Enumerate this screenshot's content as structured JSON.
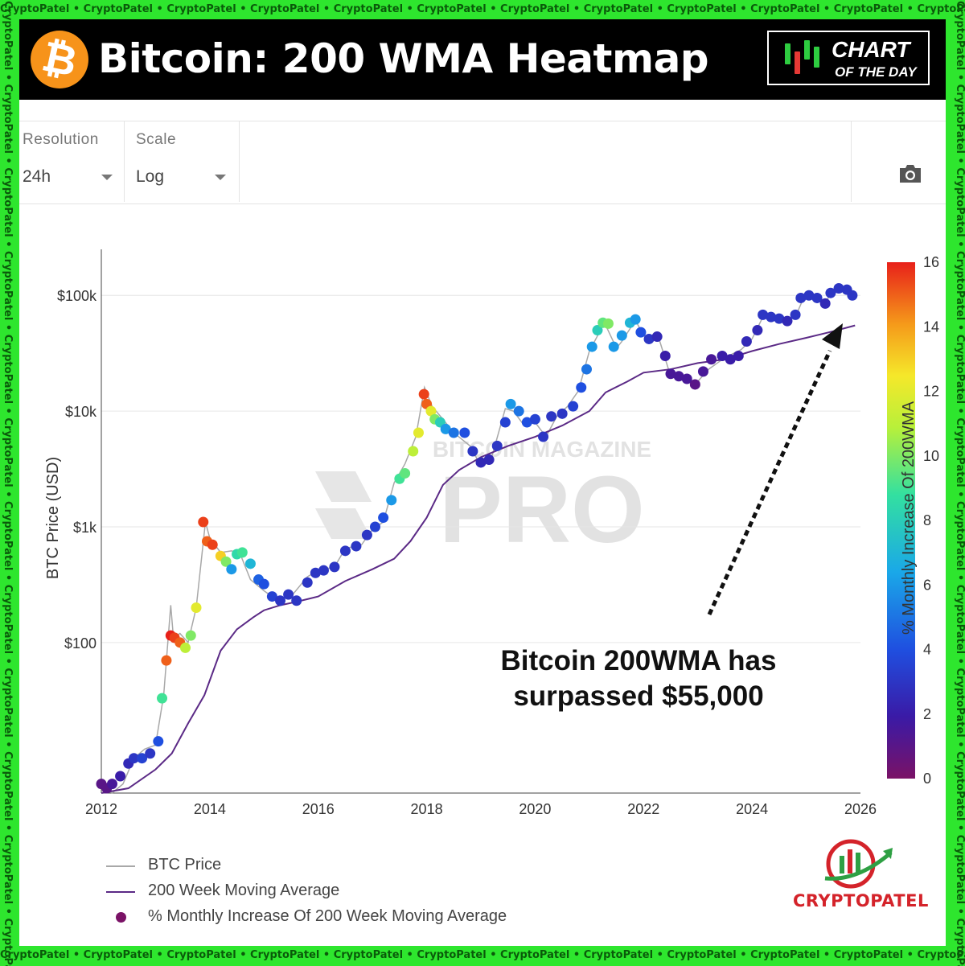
{
  "watermark": "CryptoPatel • CryptoPatel • CryptoPatel • CryptoPatel • CryptoPatel • CryptoPatel • CryptoPatel • CryptoPatel • CryptoPatel • CryptoPatel • CryptoPatel • CryptoPatel • CryptoPatel",
  "banner": {
    "title": "Bitcoin: 200 WMA Heatmap",
    "logo_icon": "bitcoin-icon",
    "logo_glyph": "₿",
    "badge_line1": "CHART",
    "badge_line2": "OF THE DAY"
  },
  "toolbar": {
    "resolution_label": "Resolution",
    "resolution_value": "24h",
    "scale_label": "Scale",
    "scale_value": "Log",
    "camera_icon": "camera-icon"
  },
  "annotation": {
    "line1": "Bitcoin 200WMA has",
    "line2": "surpassed $55,000"
  },
  "watermark_chart": {
    "line1": "BITCOIN MAGAZINE",
    "line2": "PRO"
  },
  "legend": {
    "btc_price": "BTC Price",
    "wma": "200 Week Moving Average",
    "pct": "% Monthly Increase Of 200 Week Moving Average"
  },
  "brand": {
    "name": "CRYPTOPATEL"
  },
  "colors": {
    "wma": "#5b2a86",
    "price_line": "#a8a8a8",
    "camera": "#555555"
  },
  "chart_data": {
    "type": "scatter",
    "y_scale": "log",
    "ylabel": "BTC Price (USD)",
    "x_ticks": [
      "2012",
      "2014",
      "2016",
      "2018",
      "2020",
      "2022",
      "2024",
      "2026"
    ],
    "y_ticks": [
      {
        "value": 100,
        "label": "$100"
      },
      {
        "value": 1000,
        "label": "$1k"
      },
      {
        "value": 10000,
        "label": "$10k"
      },
      {
        "value": 100000,
        "label": "$100k"
      }
    ],
    "xlim": [
      2012,
      2026
    ],
    "ylim": [
      5,
      250000
    ],
    "colorbar": {
      "label": "% Monthly Increase Of 200WMA",
      "range": [
        0,
        16
      ],
      "ticks": [
        0,
        2,
        4,
        6,
        8,
        10,
        12,
        14,
        16
      ]
    },
    "series": [
      {
        "name": "BTC Price",
        "x": [
          2012.0,
          2012.2,
          2012.4,
          2012.6,
          2012.8,
          2013.0,
          2013.15,
          2013.28,
          2013.33,
          2013.45,
          2013.6,
          2013.75,
          2013.92,
          2014.0,
          2014.2,
          2014.4,
          2014.55,
          2014.75,
          2015.0,
          2015.2,
          2015.5,
          2015.8,
          2016.0,
          2016.3,
          2016.5,
          2016.8,
          2017.0,
          2017.2,
          2017.4,
          2017.6,
          2017.8,
          2017.96,
          2018.1,
          2018.3,
          2018.5,
          2018.8,
          2018.95,
          2019.2,
          2019.45,
          2019.6,
          2019.8,
          2020.0,
          2020.2,
          2020.4,
          2020.6,
          2020.8,
          2021.0,
          2021.28,
          2021.5,
          2021.6,
          2021.85,
          2022.0,
          2022.3,
          2022.5,
          2022.8,
          2022.95,
          2023.2,
          2023.5,
          2023.8,
          2024.0,
          2024.2,
          2024.5,
          2024.8,
          2024.95,
          2025.1,
          2025.3,
          2025.5,
          2025.7,
          2025.85
        ],
        "y": [
          6,
          5,
          6,
          10,
          12,
          13,
          35,
          210,
          110,
          120,
          100,
          200,
          1100,
          800,
          600,
          620,
          600,
          350,
          280,
          240,
          250,
          370,
          420,
          450,
          650,
          700,
          950,
          1100,
          2400,
          3500,
          6000,
          16000,
          11000,
          8500,
          6500,
          5000,
          3700,
          4000,
          10500,
          10000,
          7500,
          8000,
          6000,
          9000,
          11000,
          15000,
          33000,
          58000,
          35000,
          40000,
          61000,
          45000,
          40000,
          20000,
          19000,
          17000,
          23000,
          29000,
          34000,
          42000,
          65000,
          60000,
          65000,
          95000,
          100000,
          85000,
          105000,
          115000,
          108000
        ]
      },
      {
        "name": "200 Week Moving Average",
        "x": [
          2012.0,
          2012.5,
          2013.0,
          2013.3,
          2013.6,
          2013.9,
          2014.2,
          2014.5,
          2014.8,
          2015.0,
          2015.3,
          2015.6,
          2016.0,
          2016.5,
          2017.0,
          2017.4,
          2017.7,
          2018.0,
          2018.3,
          2018.6,
          2019.0,
          2019.5,
          2020.0,
          2020.5,
          2021.0,
          2021.3,
          2021.7,
          2022.0,
          2022.5,
          2023.0,
          2023.5,
          2024.0,
          2024.5,
          2025.0,
          2025.5,
          2025.9
        ],
        "y": [
          5,
          5.5,
          8,
          11,
          20,
          35,
          85,
          130,
          165,
          190,
          210,
          225,
          250,
          340,
          430,
          530,
          750,
          1200,
          2300,
          3100,
          4000,
          5000,
          6000,
          7500,
          10000,
          14500,
          18000,
          21500,
          23000,
          26000,
          28000,
          33000,
          38000,
          43000,
          49000,
          55000
        ]
      },
      {
        "name": "% Monthly Increase Of 200 Week Moving Average",
        "points": [
          [
            2012.0,
            6,
            1
          ],
          [
            2012.1,
            5.5,
            1
          ],
          [
            2012.2,
            6,
            1.5
          ],
          [
            2012.35,
            7,
            2
          ],
          [
            2012.5,
            9,
            2.5
          ],
          [
            2012.6,
            10,
            3
          ],
          [
            2012.75,
            10,
            3.5
          ],
          [
            2012.9,
            11,
            3
          ],
          [
            2013.05,
            14,
            4
          ],
          [
            2013.12,
            33,
            9
          ],
          [
            2013.2,
            70,
            15
          ],
          [
            2013.28,
            115,
            16
          ],
          [
            2013.35,
            110,
            15.5
          ],
          [
            2013.45,
            100,
            15
          ],
          [
            2013.55,
            90,
            11
          ],
          [
            2013.65,
            115,
            10
          ],
          [
            2013.75,
            200,
            12
          ],
          [
            2013.88,
            1100,
            15.5
          ],
          [
            2013.95,
            750,
            15
          ],
          [
            2014.05,
            700,
            15.5
          ],
          [
            2014.2,
            560,
            13
          ],
          [
            2014.3,
            500,
            10
          ],
          [
            2014.4,
            430,
            6
          ],
          [
            2014.5,
            580,
            8.5
          ],
          [
            2014.6,
            600,
            9
          ],
          [
            2014.75,
            480,
            7
          ],
          [
            2014.9,
            350,
            4.5
          ],
          [
            2015.0,
            320,
            4
          ],
          [
            2015.15,
            250,
            3.5
          ],
          [
            2015.3,
            230,
            3
          ],
          [
            2015.45,
            260,
            3
          ],
          [
            2015.6,
            230,
            3
          ],
          [
            2015.8,
            330,
            3
          ],
          [
            2015.95,
            400,
            3
          ],
          [
            2016.1,
            420,
            3
          ],
          [
            2016.3,
            450,
            3
          ],
          [
            2016.5,
            620,
            3
          ],
          [
            2016.7,
            680,
            3
          ],
          [
            2016.9,
            850,
            3
          ],
          [
            2017.05,
            1000,
            3.5
          ],
          [
            2017.2,
            1200,
            4
          ],
          [
            2017.35,
            1700,
            6
          ],
          [
            2017.5,
            2600,
            9
          ],
          [
            2017.6,
            2900,
            9.5
          ],
          [
            2017.75,
            4500,
            11
          ],
          [
            2017.85,
            6500,
            12
          ],
          [
            2017.95,
            14000,
            15.5
          ],
          [
            2018.0,
            11500,
            15
          ],
          [
            2018.08,
            10000,
            12
          ],
          [
            2018.15,
            8500,
            10
          ],
          [
            2018.25,
            8000,
            8
          ],
          [
            2018.35,
            7000,
            6
          ],
          [
            2018.5,
            6500,
            5
          ],
          [
            2018.7,
            6500,
            4
          ],
          [
            2018.85,
            4500,
            3
          ],
          [
            2019.0,
            3600,
            2.5
          ],
          [
            2019.15,
            3800,
            2.5
          ],
          [
            2019.3,
            5000,
            3
          ],
          [
            2019.45,
            8000,
            3.5
          ],
          [
            2019.55,
            11500,
            6
          ],
          [
            2019.7,
            10000,
            5
          ],
          [
            2019.85,
            8000,
            4
          ],
          [
            2020.0,
            8500,
            3.5
          ],
          [
            2020.15,
            6000,
            3
          ],
          [
            2020.3,
            9000,
            3
          ],
          [
            2020.5,
            9500,
            3
          ],
          [
            2020.7,
            11000,
            3.5
          ],
          [
            2020.85,
            16000,
            4
          ],
          [
            2020.95,
            23000,
            5
          ],
          [
            2021.05,
            36000,
            6
          ],
          [
            2021.15,
            50000,
            8
          ],
          [
            2021.25,
            58000,
            9.5
          ],
          [
            2021.35,
            57000,
            10
          ],
          [
            2021.45,
            36000,
            6
          ],
          [
            2021.6,
            45000,
            6
          ],
          [
            2021.75,
            58000,
            7
          ],
          [
            2021.85,
            62000,
            6
          ],
          [
            2021.95,
            48000,
            4
          ],
          [
            2022.1,
            42000,
            3
          ],
          [
            2022.25,
            44000,
            2.5
          ],
          [
            2022.4,
            30000,
            2
          ],
          [
            2022.5,
            21000,
            1.5
          ],
          [
            2022.65,
            20000,
            1.5
          ],
          [
            2022.8,
            19000,
            1.5
          ],
          [
            2022.95,
            17000,
            1
          ],
          [
            2023.1,
            22000,
            1.5
          ],
          [
            2023.25,
            28000,
            1.5
          ],
          [
            2023.45,
            30000,
            2
          ],
          [
            2023.6,
            28000,
            2
          ],
          [
            2023.75,
            30000,
            2
          ],
          [
            2023.9,
            40000,
            2.5
          ],
          [
            2024.1,
            50000,
            2.5
          ],
          [
            2024.2,
            68000,
            3
          ],
          [
            2024.35,
            65000,
            3
          ],
          [
            2024.5,
            63000,
            3
          ],
          [
            2024.65,
            60000,
            2.5
          ],
          [
            2024.8,
            68000,
            3
          ],
          [
            2024.9,
            95000,
            3
          ],
          [
            2025.05,
            100000,
            3
          ],
          [
            2025.2,
            95000,
            3
          ],
          [
            2025.35,
            85000,
            2.5
          ],
          [
            2025.45,
            105000,
            3
          ],
          [
            2025.6,
            115000,
            3
          ],
          [
            2025.75,
            112000,
            3
          ],
          [
            2025.85,
            100000,
            3
          ]
        ]
      }
    ]
  }
}
